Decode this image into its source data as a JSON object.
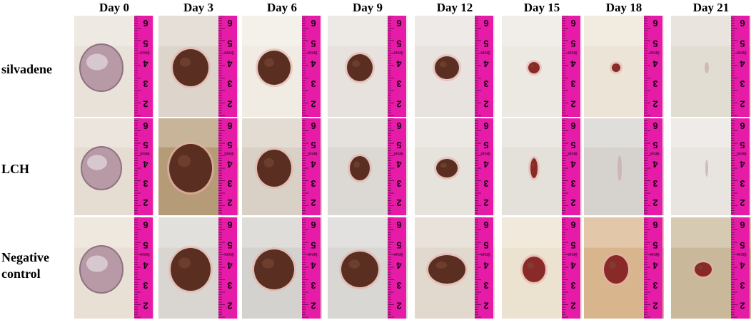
{
  "columns": [
    "Day 0",
    "Day 3",
    "Day 6",
    "Day 9",
    "Day 12",
    "Day 15",
    "Day 18",
    "Day 21"
  ],
  "rows": [
    {
      "label": "silvadene"
    },
    {
      "label": "LCH"
    },
    {
      "label": "Negative\ncontrol"
    }
  ],
  "ruler": {
    "numbers": [
      "6",
      "5",
      "4",
      "3",
      "2"
    ],
    "tag": "9mm",
    "color": "#e61ca8"
  },
  "wound_colors": {
    "day0": "#b89aa6",
    "scab": "#5a2f22",
    "fresh": "#8a2a28"
  }
}
